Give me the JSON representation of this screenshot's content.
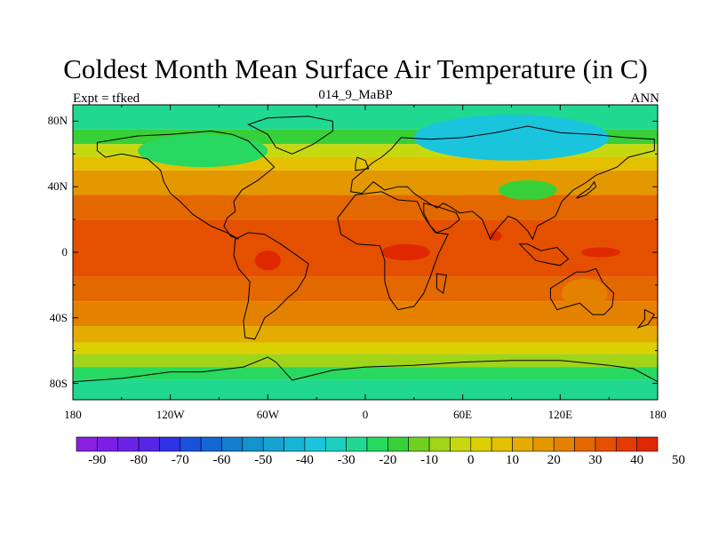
{
  "header": {
    "title": "Coldest Month Mean Surface Air Temperature (in C)",
    "left": "Expt = tfked",
    "center": "014_9_MaBP",
    "right": "ANN"
  },
  "chart_data": {
    "type": "heatmap",
    "projection": "cylindrical-equidistant",
    "x_range": [
      -180,
      180
    ],
    "y_range": [
      -90,
      90
    ],
    "x_tick_labels": [
      "180",
      "120W",
      "60W",
      "0",
      "60E",
      "120E",
      "180"
    ],
    "y_tick_labels": [
      "80N",
      "40N",
      "0",
      "40S",
      "80S"
    ],
    "colorbar": {
      "tick_labels": [
        "-90",
        "-80",
        "-70",
        "-60",
        "-50",
        "-40",
        "-30",
        "-20",
        "-10",
        "0",
        "10",
        "20",
        "30",
        "40",
        "50"
      ],
      "range": [
        -95,
        55
      ],
      "interval": 5,
      "colors": [
        "#8a1ee3",
        "#7a20e6",
        "#6a22e6",
        "#5526e6",
        "#3030e6",
        "#1a50dc",
        "#1566d2",
        "#137ecc",
        "#1392cc",
        "#15a4d2",
        "#18b4d8",
        "#1ac4dc",
        "#1cd0c0",
        "#20d890",
        "#28d860",
        "#38d038",
        "#70d020",
        "#a0d418",
        "#c8d810",
        "#dcd000",
        "#e4c000",
        "#e4ac00",
        "#e49800",
        "#e48200",
        "#e46800",
        "#e45000",
        "#e43c00",
        "#e02800"
      ],
      "labels_note": ""
    },
    "zonal_bands": [
      {
        "lat_min": 75,
        "lat_max": 90,
        "value": -30
      },
      {
        "lat_min": 66,
        "lat_max": 75,
        "value": -20
      },
      {
        "lat_min": 58,
        "lat_max": 66,
        "value": -5
      },
      {
        "lat_min": 50,
        "lat_max": 58,
        "value": 8
      },
      {
        "lat_min": 35,
        "lat_max": 50,
        "value": 18
      },
      {
        "lat_min": 20,
        "lat_max": 35,
        "value": 25
      },
      {
        "lat_min": -15,
        "lat_max": 20,
        "value": 32
      },
      {
        "lat_min": -30,
        "lat_max": -15,
        "value": 27
      },
      {
        "lat_min": -45,
        "lat_max": -30,
        "value": 20
      },
      {
        "lat_min": -55,
        "lat_max": -45,
        "value": 12
      },
      {
        "lat_min": -62,
        "lat_max": -55,
        "value": 4
      },
      {
        "lat_min": -70,
        "lat_max": -62,
        "value": -8
      },
      {
        "lat_min": -78,
        "lat_max": -70,
        "value": -22
      },
      {
        "lat_min": -90,
        "lat_max": -78,
        "value": -30
      }
    ],
    "anomalies": [
      {
        "lon": 90,
        "lat": 70,
        "rx": 60,
        "ry": 14,
        "value": -38
      },
      {
        "lon": -100,
        "lat": 62,
        "rx": 40,
        "ry": 10,
        "value": -22
      },
      {
        "lon": 100,
        "lat": 38,
        "rx": 18,
        "ry": 6,
        "value": -20
      },
      {
        "lon": -60,
        "lat": -5,
        "rx": 8,
        "ry": 6,
        "value": 42
      },
      {
        "lon": 25,
        "lat": 0,
        "rx": 15,
        "ry": 5,
        "value": 42
      },
      {
        "lon": 145,
        "lat": 0,
        "rx": 12,
        "ry": 3,
        "value": 40
      },
      {
        "lon": 80,
        "lat": 10,
        "rx": 4,
        "ry": 3,
        "value": 40
      },
      {
        "lon": 135,
        "lat": -25,
        "rx": 14,
        "ry": 9,
        "value": 24
      }
    ],
    "continents": [
      {
        "name": "north-america",
        "coords": [
          [
            -165,
            67
          ],
          [
            -140,
            71
          ],
          [
            -120,
            72
          ],
          [
            -95,
            74
          ],
          [
            -82,
            72
          ],
          [
            -72,
            68
          ],
          [
            -64,
            60
          ],
          [
            -56,
            52
          ],
          [
            -66,
            44
          ],
          [
            -76,
            38
          ],
          [
            -81,
            31
          ],
          [
            -80,
            25
          ],
          [
            -85,
            21
          ],
          [
            -87,
            16
          ],
          [
            -83,
            10
          ],
          [
            -78,
            8
          ],
          [
            -85,
            12
          ],
          [
            -95,
            16
          ],
          [
            -106,
            23
          ],
          [
            -114,
            31
          ],
          [
            -120,
            36
          ],
          [
            -124,
            43
          ],
          [
            -126,
            50
          ],
          [
            -134,
            57
          ],
          [
            -150,
            60
          ],
          [
            -160,
            58
          ],
          [
            -165,
            62
          ]
        ]
      },
      {
        "name": "greenland",
        "coords": [
          [
            -72,
            78
          ],
          [
            -60,
            82
          ],
          [
            -35,
            83
          ],
          [
            -20,
            80
          ],
          [
            -20,
            74
          ],
          [
            -32,
            66
          ],
          [
            -45,
            60
          ],
          [
            -55,
            64
          ],
          [
            -60,
            72
          ]
        ]
      },
      {
        "name": "south-america",
        "coords": [
          [
            -80,
            8
          ],
          [
            -72,
            12
          ],
          [
            -62,
            11
          ],
          [
            -52,
            5
          ],
          [
            -42,
            -2
          ],
          [
            -35,
            -7
          ],
          [
            -37,
            -15
          ],
          [
            -42,
            -23
          ],
          [
            -48,
            -28
          ],
          [
            -55,
            -35
          ],
          [
            -62,
            -40
          ],
          [
            -65,
            -47
          ],
          [
            -68,
            -53
          ],
          [
            -74,
            -52
          ],
          [
            -75,
            -42
          ],
          [
            -72,
            -30
          ],
          [
            -71,
            -18
          ],
          [
            -78,
            -10
          ],
          [
            -81,
            -2
          ]
        ]
      },
      {
        "name": "eurasia",
        "coords": [
          [
            -9,
            37
          ],
          [
            -8,
            44
          ],
          [
            -2,
            49
          ],
          [
            5,
            55
          ],
          [
            10,
            58
          ],
          [
            16,
            63
          ],
          [
            22,
            70
          ],
          [
            40,
            69
          ],
          [
            60,
            70
          ],
          [
            80,
            73
          ],
          [
            100,
            77
          ],
          [
            120,
            73
          ],
          [
            140,
            72
          ],
          [
            160,
            70
          ],
          [
            178,
            69
          ],
          [
            178,
            62
          ],
          [
            162,
            58
          ],
          [
            155,
            52
          ],
          [
            142,
            47
          ],
          [
            135,
            42
          ],
          [
            128,
            38
          ],
          [
            121,
            31
          ],
          [
            117,
            22
          ],
          [
            106,
            16
          ],
          [
            103,
            8
          ],
          [
            100,
            13
          ],
          [
            93,
            20
          ],
          [
            88,
            22
          ],
          [
            80,
            13
          ],
          [
            77,
            8
          ],
          [
            72,
            20
          ],
          [
            66,
            25
          ],
          [
            58,
            24
          ],
          [
            52,
            28
          ],
          [
            48,
            30
          ],
          [
            44,
            27
          ],
          [
            36,
            32
          ],
          [
            30,
            36
          ],
          [
            26,
            40
          ],
          [
            20,
            40
          ],
          [
            12,
            38
          ],
          [
            5,
            43
          ],
          [
            -2,
            36
          ]
        ]
      },
      {
        "name": "africa",
        "coords": [
          [
            -17,
            21
          ],
          [
            -10,
            30
          ],
          [
            -6,
            35
          ],
          [
            10,
            37
          ],
          [
            20,
            32
          ],
          [
            32,
            31
          ],
          [
            36,
            22
          ],
          [
            43,
            12
          ],
          [
            51,
            11
          ],
          [
            45,
            -1
          ],
          [
            40,
            -15
          ],
          [
            36,
            -25
          ],
          [
            30,
            -33
          ],
          [
            20,
            -35
          ],
          [
            15,
            -28
          ],
          [
            12,
            -18
          ],
          [
            12,
            -5
          ],
          [
            9,
            4
          ],
          [
            -5,
            5
          ],
          [
            -15,
            11
          ]
        ]
      },
      {
        "name": "arabia",
        "coords": [
          [
            36,
            30
          ],
          [
            44,
            28
          ],
          [
            50,
            26
          ],
          [
            56,
            24
          ],
          [
            58,
            20
          ],
          [
            52,
            15
          ],
          [
            44,
            12
          ],
          [
            40,
            16
          ],
          [
            36,
            24
          ]
        ]
      },
      {
        "name": "australia",
        "coords": [
          [
            114,
            -22
          ],
          [
            122,
            -17
          ],
          [
            130,
            -12
          ],
          [
            136,
            -12
          ],
          [
            142,
            -10
          ],
          [
            146,
            -18
          ],
          [
            153,
            -25
          ],
          [
            152,
            -33
          ],
          [
            147,
            -38
          ],
          [
            140,
            -38
          ],
          [
            132,
            -31
          ],
          [
            118,
            -35
          ],
          [
            114,
            -28
          ]
        ]
      },
      {
        "name": "antarctica",
        "coords": [
          [
            -180,
            -79
          ],
          [
            -150,
            -77
          ],
          [
            -120,
            -73
          ],
          [
            -100,
            -73
          ],
          [
            -75,
            -70
          ],
          [
            -60,
            -64
          ],
          [
            -55,
            -67
          ],
          [
            -45,
            -78
          ],
          [
            -20,
            -72
          ],
          [
            0,
            -70
          ],
          [
            30,
            -69
          ],
          [
            60,
            -67
          ],
          [
            90,
            -66
          ],
          [
            120,
            -66
          ],
          [
            150,
            -69
          ],
          [
            165,
            -71
          ],
          [
            180,
            -79
          ],
          [
            180,
            -90
          ],
          [
            -180,
            -90
          ]
        ]
      },
      {
        "name": "indonesia",
        "coords": [
          [
            95,
            5
          ],
          [
            105,
            -5
          ],
          [
            114,
            -7
          ],
          [
            120,
            -8
          ],
          [
            125,
            -4
          ],
          [
            118,
            3
          ],
          [
            108,
            1
          ],
          [
            100,
            5
          ]
        ]
      },
      {
        "name": "madagascar",
        "coords": [
          [
            44,
            -13
          ],
          [
            50,
            -14
          ],
          [
            48,
            -25
          ],
          [
            44,
            -22
          ]
        ]
      },
      {
        "name": "japan",
        "coords": [
          [
            130,
            33
          ],
          [
            136,
            35
          ],
          [
            142,
            40
          ],
          [
            141,
            43
          ],
          [
            138,
            39
          ],
          [
            132,
            35
          ]
        ]
      },
      {
        "name": "uk",
        "coords": [
          [
            -6,
            50
          ],
          [
            2,
            51
          ],
          [
            0,
            56
          ],
          [
            -5,
            58
          ],
          [
            -6,
            54
          ]
        ]
      },
      {
        "name": "new-zealand",
        "coords": [
          [
            172,
            -35
          ],
          [
            178,
            -38
          ],
          [
            174,
            -44
          ],
          [
            168,
            -46
          ],
          [
            172,
            -41
          ]
        ]
      }
    ]
  }
}
